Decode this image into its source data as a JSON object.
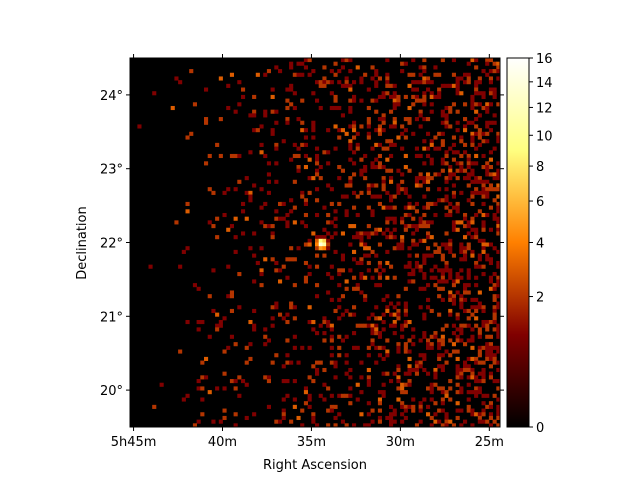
{
  "chart_data": {
    "type": "heatmap",
    "title": "",
    "xlabel": "Right Ascension",
    "ylabel": "Declination",
    "x_ticks": [
      {
        "value_deg": 86.25,
        "label": "5h45m"
      },
      {
        "value_deg": 85.0,
        "label": "40m"
      },
      {
        "value_deg": 83.75,
        "label": "35m"
      },
      {
        "value_deg": 82.5,
        "label": "30m"
      },
      {
        "value_deg": 81.25,
        "label": "25m"
      }
    ],
    "y_ticks": [
      {
        "value_deg": 20,
        "label": "20°"
      },
      {
        "value_deg": 21,
        "label": "21°"
      },
      {
        "value_deg": 22,
        "label": "22°"
      },
      {
        "value_deg": 23,
        "label": "23°"
      },
      {
        "value_deg": 24,
        "label": "24°"
      }
    ],
    "ra_range_deg": [
      86.3,
      81.1
    ],
    "dec_range_deg": [
      19.5,
      24.5
    ],
    "colorbar": {
      "colormap": "afmhot",
      "scale": "sqrt",
      "range": [
        0,
        16
      ],
      "ticks": [
        0,
        2,
        4,
        6,
        8,
        10,
        12,
        14,
        16
      ]
    },
    "bright_source": {
      "ra_deg": 83.63,
      "dec_deg": 22.01,
      "peak_counts": 16
    },
    "background": "sparse photon counts (mostly 0–2 per pixel), density increasing toward lower RA; a cluster of 1–2 counts near RA 82.7°, Dec 21.0°"
  }
}
